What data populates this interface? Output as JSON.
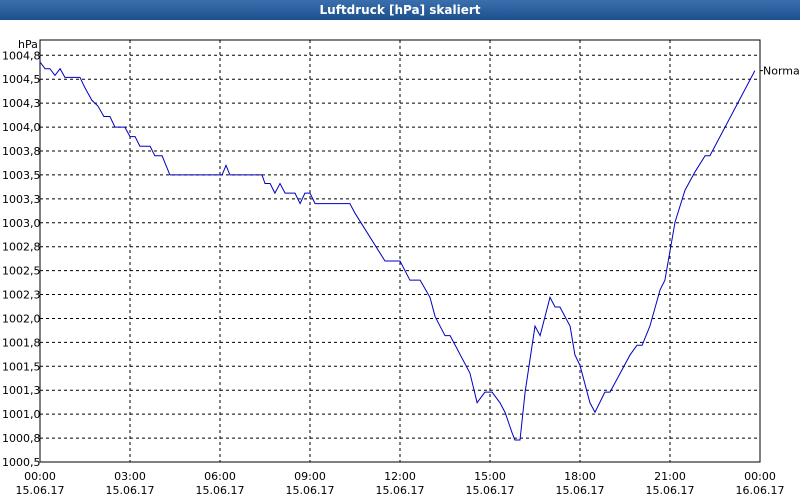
{
  "chart_data": {
    "type": "line",
    "title": "Luftdruck [hPa] skaliert",
    "y_label": "hPa",
    "grid": true,
    "xlim": [
      0,
      24
    ],
    "ylim": [
      1000.5,
      1004.91
    ],
    "xticks": [
      {
        "value": 0,
        "label": "00:00",
        "date": "15.06.17"
      },
      {
        "value": 3,
        "label": "03:00",
        "date": "15.06.17"
      },
      {
        "value": 6,
        "label": "06:00",
        "date": "15.06.17"
      },
      {
        "value": 9,
        "label": "09:00",
        "date": "15.06.17"
      },
      {
        "value": 12,
        "label": "12:00",
        "date": "15.06.17"
      },
      {
        "value": 15,
        "label": "15:00",
        "date": "15.06.17"
      },
      {
        "value": 18,
        "label": "18:00",
        "date": "15.06.17"
      },
      {
        "value": 21,
        "label": "21:00",
        "date": "15.06.17"
      },
      {
        "value": 24,
        "label": "00:00",
        "date": "16.06.17"
      }
    ],
    "yticks": [
      {
        "value": 1000.5,
        "label": "1000,5"
      },
      {
        "value": 1000.75,
        "label": "1000,8"
      },
      {
        "value": 1001.0,
        "label": "1001,0"
      },
      {
        "value": 1001.25,
        "label": "1001,3"
      },
      {
        "value": 1001.5,
        "label": "1001,5"
      },
      {
        "value": 1001.75,
        "label": "1001,8"
      },
      {
        "value": 1002.0,
        "label": "1002,0"
      },
      {
        "value": 1002.25,
        "label": "1002,3"
      },
      {
        "value": 1002.5,
        "label": "1002,5"
      },
      {
        "value": 1002.75,
        "label": "1002,8"
      },
      {
        "value": 1003.0,
        "label": "1003,0"
      },
      {
        "value": 1003.25,
        "label": "1003,3"
      },
      {
        "value": 1003.5,
        "label": "1003,5"
      },
      {
        "value": 1003.75,
        "label": "1003,8"
      },
      {
        "value": 1004.0,
        "label": "1004,0"
      },
      {
        "value": 1004.25,
        "label": "1004,3"
      },
      {
        "value": 1004.5,
        "label": "1004,5"
      },
      {
        "value": 1004.75,
        "label": "1004,8"
      }
    ],
    "x": [
      0,
      0.17,
      0.33,
      0.5,
      0.67,
      0.83,
      1.33,
      1.5,
      1.73,
      1.93,
      2.13,
      2.33,
      2.5,
      2.83,
      3,
      3.17,
      3.33,
      3.67,
      3.83,
      4.07,
      4.33,
      6.07,
      6.2,
      6.33,
      7.4,
      7.5,
      7.67,
      7.83,
      8,
      8.17,
      8.5,
      8.67,
      8.83,
      9,
      9.17,
      10.33,
      10.5,
      11.5,
      12,
      12.33,
      12.67,
      13,
      13.17,
      13.5,
      13.67,
      14.33,
      14.57,
      14.83,
      15.07,
      15.33,
      15.5,
      15.73,
      15.83,
      16,
      16.17,
      16.5,
      16.67,
      17,
      17.17,
      17.33,
      17.67,
      17.83,
      18,
      18.33,
      18.5,
      18.83,
      19,
      19.67,
      19.9,
      20.07,
      20.33,
      20.67,
      20.83,
      21.17,
      21.5,
      21.83,
      22.17,
      22.33,
      23.83
    ],
    "series": [
      {
        "name": "Normal",
        "color": "#0000c0",
        "values": [
          1004.68,
          1004.61,
          1004.61,
          1004.54,
          1004.61,
          1004.52,
          1004.52,
          1004.41,
          1004.28,
          1004.22,
          1004.11,
          1004.11,
          1004.0,
          1004.0,
          1003.9,
          1003.9,
          1003.8,
          1003.8,
          1003.7,
          1003.7,
          1003.5,
          1003.5,
          1003.6,
          1003.5,
          1003.5,
          1003.41,
          1003.41,
          1003.31,
          1003.41,
          1003.31,
          1003.31,
          1003.2,
          1003.31,
          1003.31,
          1003.2,
          1003.2,
          1003.1,
          1002.6,
          1002.6,
          1002.4,
          1002.4,
          1002.22,
          1002.02,
          1001.82,
          1001.82,
          1001.43,
          1001.12,
          1001.23,
          1001.23,
          1001.12,
          1001.02,
          1000.81,
          1000.73,
          1000.73,
          1001.23,
          1001.92,
          1001.82,
          1002.22,
          1002.12,
          1002.12,
          1001.92,
          1001.62,
          1001.51,
          1001.12,
          1001.02,
          1001.23,
          1001.23,
          1001.62,
          1001.72,
          1001.72,
          1001.92,
          1002.3,
          1002.4,
          1003.01,
          1003.34,
          1003.53,
          1003.7,
          1003.7,
          1004.59
        ]
      }
    ]
  }
}
